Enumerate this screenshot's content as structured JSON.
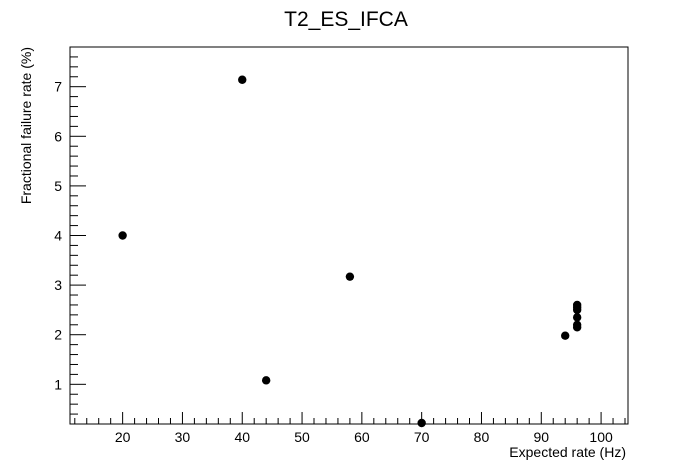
{
  "chart_data": {
    "type": "scatter",
    "title": "T2_ES_IFCA",
    "xlabel": "Expected rate (Hz)",
    "ylabel": "Fractional failure rate (%)",
    "xlim": [
      11.2,
      104.5
    ],
    "ylim": [
      0.2,
      7.8
    ],
    "x_ticks": [
      20,
      30,
      40,
      50,
      60,
      70,
      80,
      90,
      100
    ],
    "y_ticks": [
      1,
      2,
      3,
      4,
      5,
      6,
      7
    ],
    "grid": false,
    "marker_color": "#000000",
    "points": [
      {
        "x": 20,
        "y": 4.0
      },
      {
        "x": 40,
        "y": 7.14
      },
      {
        "x": 44,
        "y": 1.08
      },
      {
        "x": 58,
        "y": 3.17
      },
      {
        "x": 70,
        "y": 0.22
      },
      {
        "x": 94,
        "y": 1.98
      },
      {
        "x": 96,
        "y": 2.15
      },
      {
        "x": 96,
        "y": 2.2
      },
      {
        "x": 96,
        "y": 2.35
      },
      {
        "x": 96,
        "y": 2.5
      },
      {
        "x": 96,
        "y": 2.55
      },
      {
        "x": 96,
        "y": 2.6
      }
    ]
  }
}
